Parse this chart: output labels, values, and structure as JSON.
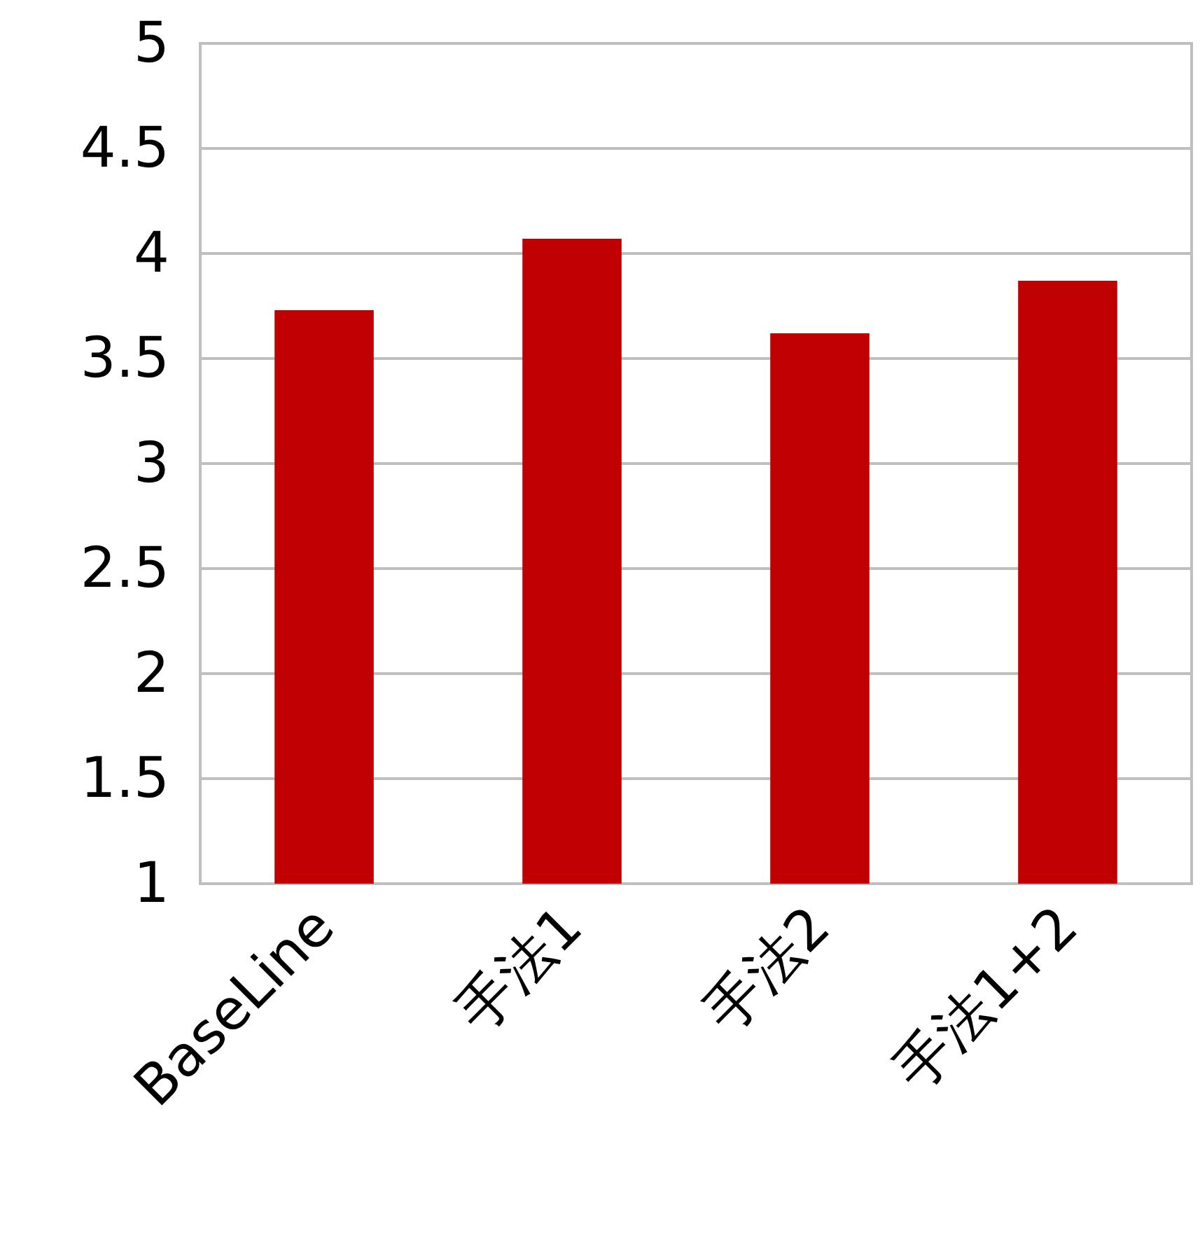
{
  "chart_data": {
    "type": "bar",
    "categories": [
      "BaseLine",
      "手法1",
      "手法2",
      "手法1+2"
    ],
    "values": [
      3.73,
      4.07,
      3.62,
      3.87
    ],
    "color": "#c00000",
    "ylim": [
      1,
      5
    ],
    "yticks": [
      1,
      1.5,
      2,
      2.5,
      3,
      3.5,
      4,
      4.5,
      5
    ],
    "grid": "y"
  }
}
